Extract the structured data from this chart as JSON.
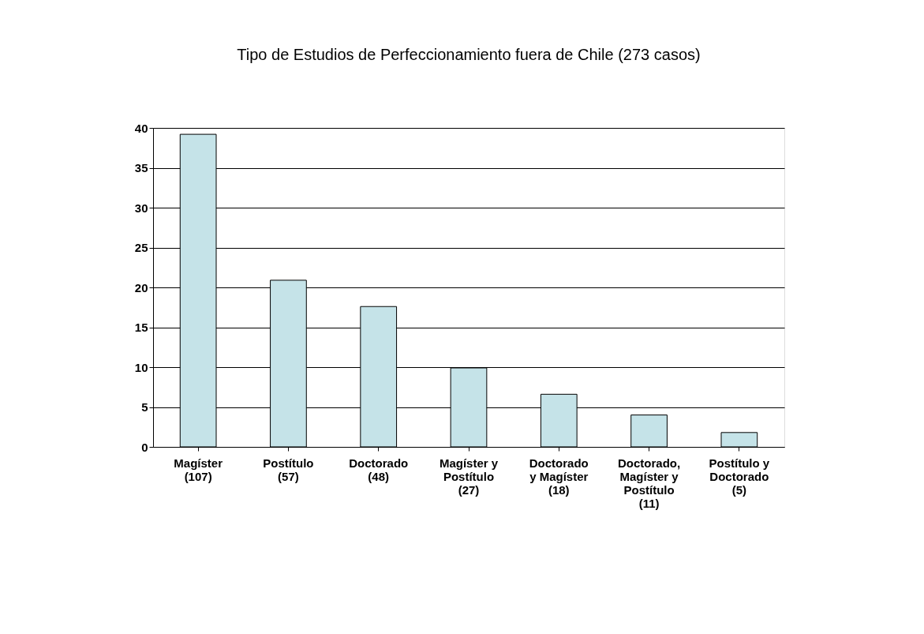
{
  "chart_data": {
    "type": "bar",
    "title": "Tipo de Estudios de Perfeccionamiento fuera de Chile (273 casos)",
    "categories": [
      "Magíster\n(107)",
      "Postítulo\n(57)",
      "Doctorado\n(48)",
      "Magíster y\nPostítulo\n(27)",
      "Doctorado\ny Magíster\n(18)",
      "Doctorado,\nMagíster y\nPostítulo\n(11)",
      "Postítulo y\nDoctorado\n(5)"
    ],
    "values": [
      39.2,
      20.9,
      17.6,
      9.9,
      6.6,
      4.0,
      1.8
    ],
    "color": "#c5e3e8",
    "ylim": [
      0,
      40
    ],
    "yticks": [
      0,
      5,
      10,
      15,
      20,
      25,
      30,
      35,
      40
    ],
    "grid": "y"
  }
}
